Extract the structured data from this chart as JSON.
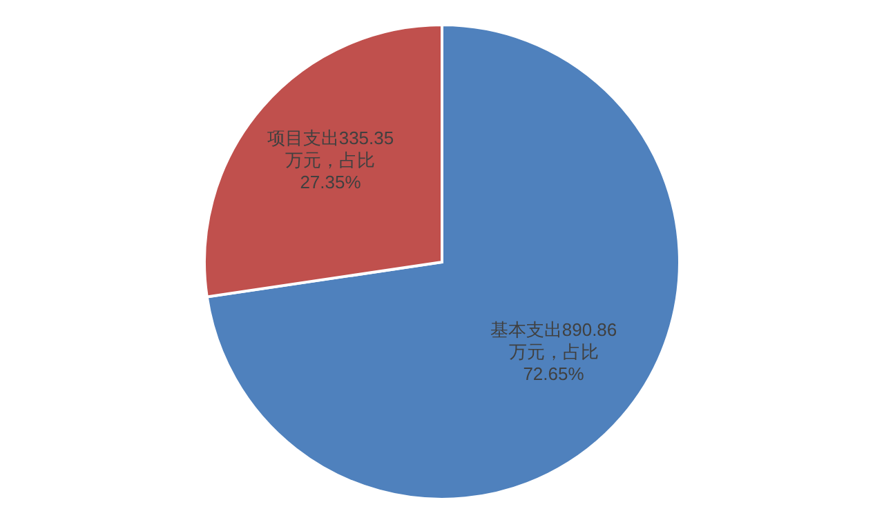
{
  "chart_data": {
    "type": "pie",
    "categories": [
      "基本支出",
      "项目支出"
    ],
    "values": [
      890.86,
      335.35
    ],
    "value_labels": [
      "890.86\n万元，占比\n72.65%",
      "335.35\n万元，占比\n27.35%"
    ],
    "colors": [
      "#4f81bd",
      "#c0504d"
    ]
  }
}
